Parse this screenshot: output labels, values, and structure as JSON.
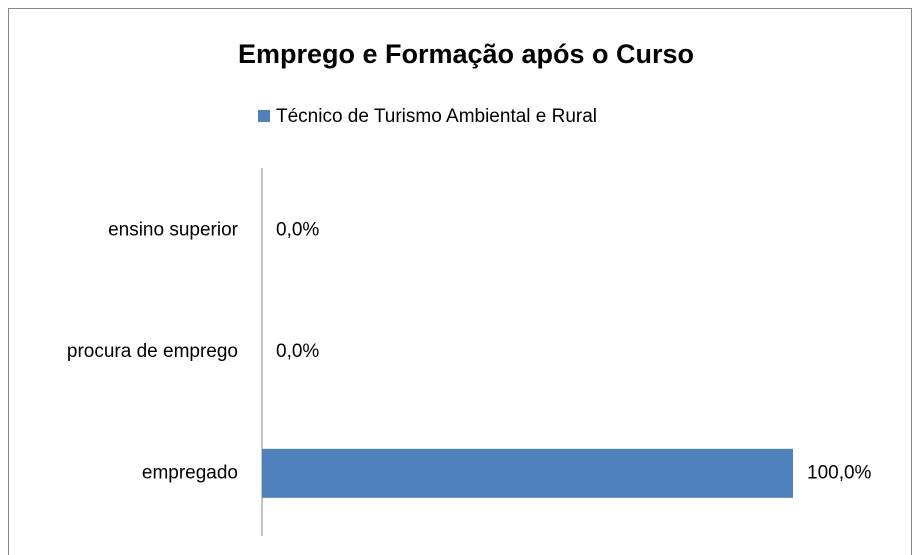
{
  "chart_data": {
    "type": "barh",
    "title": "Emprego e Formação após o Curso",
    "categories": [
      "ensino superior",
      "procura de emprego",
      "empregado"
    ],
    "series": [
      {
        "name": "Técnico de Turismo Ambiental e Rural",
        "color": "#4f81bd",
        "values": [
          0,
          0,
          100
        ],
        "value_labels": [
          "0,0%",
          "0,0%",
          "100,0%"
        ]
      }
    ],
    "xlim": [
      0,
      100
    ],
    "legend": "top"
  }
}
